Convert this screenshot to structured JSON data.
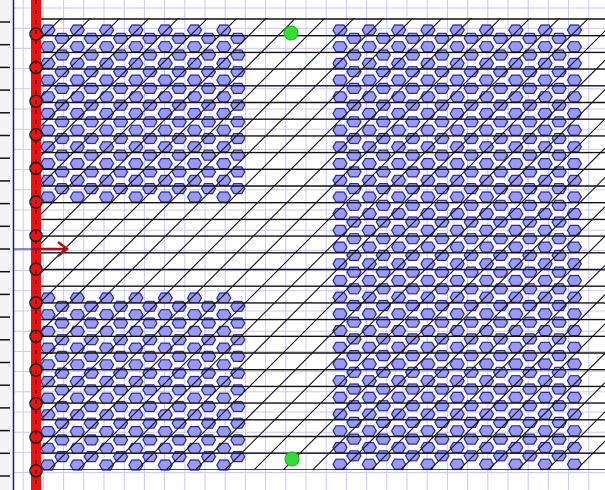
{
  "canvas": {
    "colors": {
      "background": "#ffffff",
      "grid": "#c8c8f4",
      "ruler": "#f4f4f4",
      "ruler_line": "#1a1a80",
      "red_bar": "#ee1111",
      "hatch": "#111111",
      "blob_fill": "#9a9af0",
      "blob_stroke": "#2828a0",
      "marker": "#33dd33",
      "arrow": "#aa1111"
    },
    "icons": {
      "origin_arrow": "arrow-right-icon",
      "markers": "green-dot-icon"
    }
  }
}
